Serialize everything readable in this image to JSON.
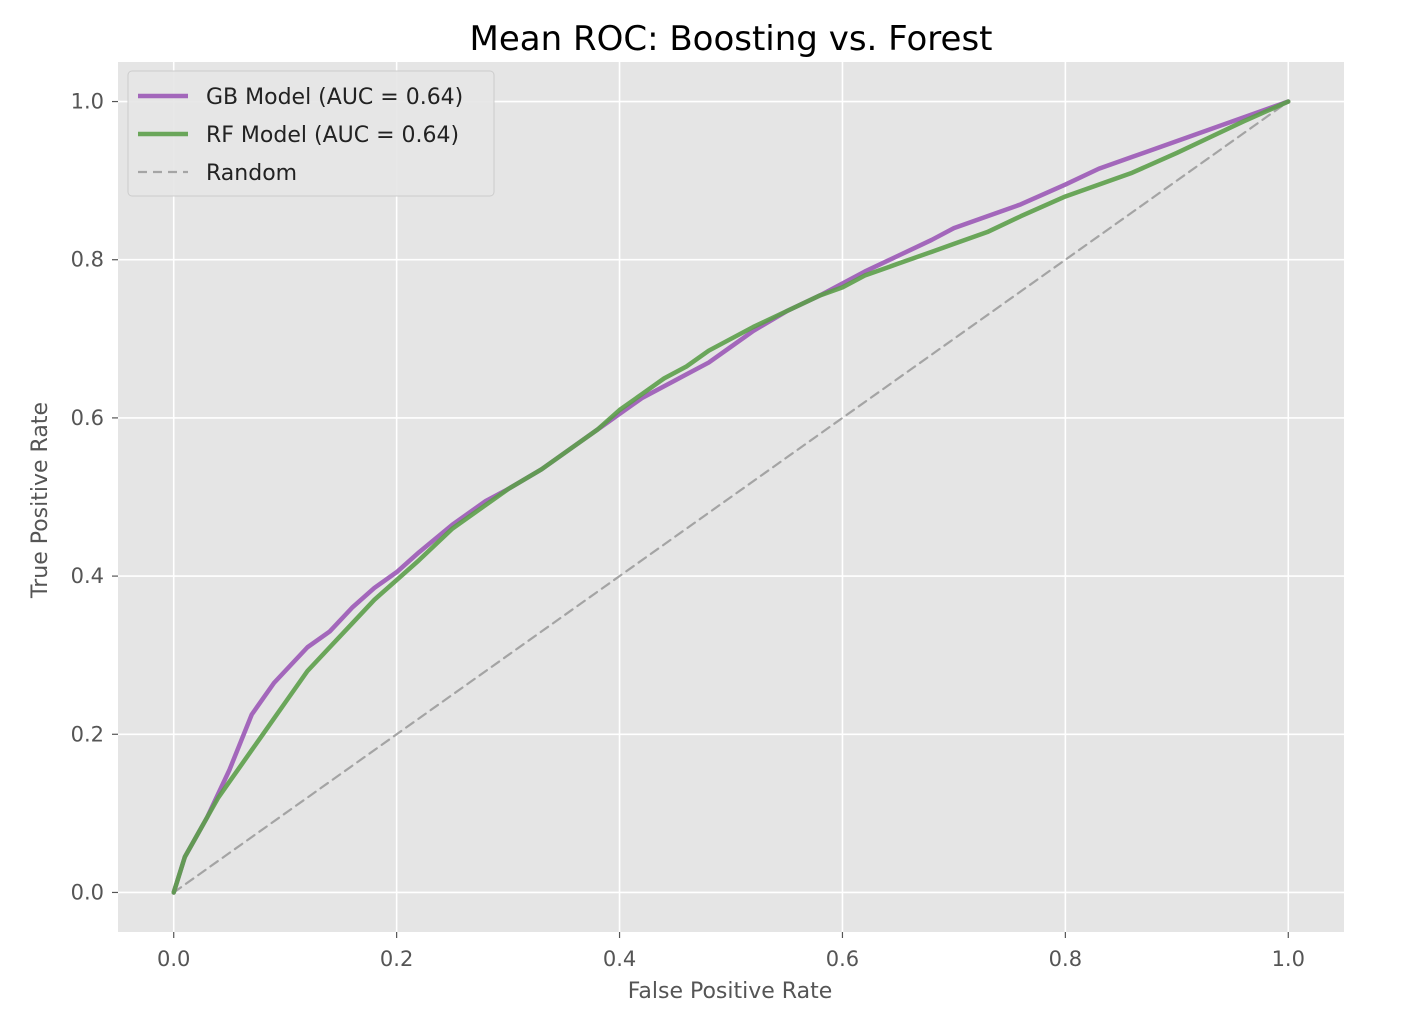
{
  "chart_data": {
    "type": "line",
    "title": "Mean ROC: Boosting vs. Forest",
    "xlabel": "False Positive Rate",
    "ylabel": "True Positive Rate",
    "xlim": [
      -0.05,
      1.05
    ],
    "ylim": [
      -0.05,
      1.05
    ],
    "xticks": [
      "0.0",
      "0.2",
      "0.4",
      "0.6",
      "0.8",
      "1.0"
    ],
    "yticks": [
      "0.0",
      "0.2",
      "0.4",
      "0.6",
      "0.8",
      "1.0"
    ],
    "grid": true,
    "legend_position": "top-left",
    "background_color": "#e5e5e5",
    "series": [
      {
        "name": "GB Model (AUC = 0.64)",
        "color": "#9b59b6",
        "style": "solid",
        "x": [
          0.0,
          0.01,
          0.02,
          0.03,
          0.04,
          0.05,
          0.06,
          0.07,
          0.08,
          0.09,
          0.1,
          0.12,
          0.14,
          0.16,
          0.18,
          0.2,
          0.22,
          0.25,
          0.28,
          0.3,
          0.33,
          0.36,
          0.38,
          0.4,
          0.42,
          0.44,
          0.46,
          0.48,
          0.5,
          0.52,
          0.55,
          0.58,
          0.6,
          0.62,
          0.65,
          0.68,
          0.7,
          0.73,
          0.76,
          0.8,
          0.83,
          0.86,
          0.9,
          0.93,
          0.96,
          1.0
        ],
        "y": [
          0.0,
          0.045,
          0.07,
          0.095,
          0.125,
          0.155,
          0.19,
          0.225,
          0.245,
          0.265,
          0.28,
          0.31,
          0.33,
          0.36,
          0.385,
          0.405,
          0.43,
          0.465,
          0.495,
          0.51,
          0.535,
          0.565,
          0.585,
          0.605,
          0.625,
          0.64,
          0.655,
          0.67,
          0.69,
          0.71,
          0.735,
          0.755,
          0.77,
          0.785,
          0.805,
          0.825,
          0.84,
          0.855,
          0.87,
          0.895,
          0.915,
          0.93,
          0.95,
          0.965,
          0.98,
          1.0
        ]
      },
      {
        "name": "RF Model (AUC = 0.64)",
        "color": "#5c9e4a",
        "style": "solid",
        "x": [
          0.0,
          0.01,
          0.02,
          0.03,
          0.04,
          0.05,
          0.06,
          0.07,
          0.08,
          0.09,
          0.1,
          0.12,
          0.14,
          0.16,
          0.18,
          0.2,
          0.22,
          0.25,
          0.28,
          0.3,
          0.33,
          0.36,
          0.38,
          0.4,
          0.42,
          0.44,
          0.46,
          0.48,
          0.5,
          0.52,
          0.55,
          0.58,
          0.6,
          0.62,
          0.65,
          0.68,
          0.7,
          0.73,
          0.76,
          0.8,
          0.83,
          0.86,
          0.9,
          0.93,
          0.96,
          1.0
        ],
        "y": [
          0.0,
          0.045,
          0.07,
          0.095,
          0.12,
          0.14,
          0.16,
          0.18,
          0.2,
          0.22,
          0.24,
          0.28,
          0.31,
          0.34,
          0.37,
          0.395,
          0.42,
          0.46,
          0.49,
          0.51,
          0.535,
          0.565,
          0.585,
          0.61,
          0.63,
          0.65,
          0.665,
          0.685,
          0.7,
          0.715,
          0.735,
          0.755,
          0.765,
          0.78,
          0.795,
          0.81,
          0.82,
          0.835,
          0.855,
          0.88,
          0.895,
          0.91,
          0.935,
          0.955,
          0.975,
          1.0
        ]
      },
      {
        "name": "Random",
        "color": "#999999",
        "style": "dashed",
        "x": [
          0.0,
          1.0
        ],
        "y": [
          0.0,
          1.0
        ]
      }
    ]
  }
}
